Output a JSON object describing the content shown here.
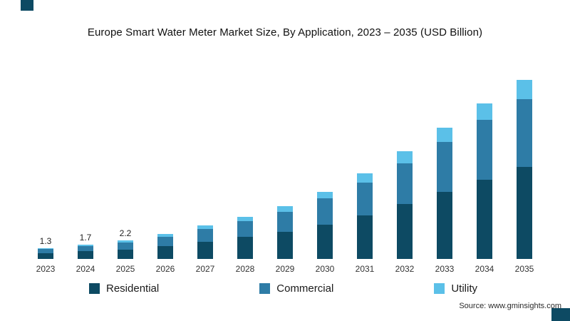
{
  "title": "Europe Smart Water Meter Market Size, By Application, 2023 – 2035 (USD Billion)",
  "source_text": "Source: www.gminsights.com",
  "colors": {
    "accent": "#0d4a63",
    "background": "#ffffff"
  },
  "legend": [
    {
      "label": "Residential",
      "color": "#0d4a63"
    },
    {
      "label": "Commercial",
      "color": "#2e7ca6"
    },
    {
      "label": "Utility",
      "color": "#5bc0e8"
    }
  ],
  "chart_data": {
    "type": "bar",
    "stacked": true,
    "title": "Europe Smart Water Meter Market Size, By Application, 2023 – 2035 (USD Billion)",
    "xlabel": "",
    "ylabel": "",
    "unit": "USD Billion",
    "grid": false,
    "legend_position": "bottom",
    "ylim": [
      0,
      22
    ],
    "categories": [
      "2023",
      "2024",
      "2025",
      "2026",
      "2027",
      "2028",
      "2029",
      "2030",
      "2031",
      "2032",
      "2033",
      "2034",
      "2035"
    ],
    "series": [
      {
        "name": "Residential",
        "color": "#0d4a63",
        "values": [
          0.7,
          0.9,
          1.1,
          1.5,
          2.0,
          2.6,
          3.2,
          4.1,
          5.2,
          6.5,
          8.0,
          9.4,
          10.9
        ]
      },
      {
        "name": "Commercial",
        "color": "#2e7ca6",
        "values": [
          0.5,
          0.6,
          0.85,
          1.15,
          1.55,
          1.9,
          2.4,
          3.1,
          3.9,
          4.9,
          5.9,
          7.1,
          8.1
        ]
      },
      {
        "name": "Utility",
        "color": "#5bc0e8",
        "values": [
          0.1,
          0.2,
          0.25,
          0.35,
          0.45,
          0.5,
          0.7,
          0.8,
          1.1,
          1.4,
          1.7,
          2.0,
          2.3
        ]
      }
    ],
    "totals": [
      1.3,
      1.7,
      2.2,
      3.0,
      4.0,
      5.0,
      6.3,
      8.0,
      10.2,
      12.8,
      15.6,
      18.5,
      21.3
    ],
    "totals_labels": [
      "1.3",
      "1.7",
      "2.2",
      "",
      "",
      "",
      "",
      "",
      "",
      "",
      "",
      "",
      ""
    ]
  }
}
